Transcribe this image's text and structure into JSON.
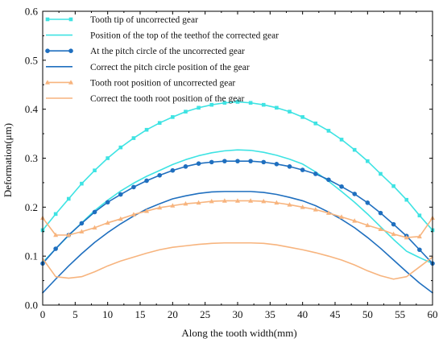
{
  "chart_data": {
    "type": "line",
    "title": "",
    "xlabel": "Along the tooth width(mm)",
    "ylabel": "Deformation(μm)",
    "xlim": [
      0,
      60
    ],
    "ylim": [
      0,
      0.6
    ],
    "x_ticks": [
      0,
      5,
      10,
      15,
      20,
      25,
      30,
      35,
      40,
      45,
      50,
      55,
      60
    ],
    "y_ticks": [
      0.0,
      0.1,
      0.2,
      0.3,
      0.4,
      0.5,
      0.6
    ],
    "x_tick_labels": [
      "0",
      "5",
      "10",
      "15",
      "20",
      "25",
      "30",
      "35",
      "40",
      "45",
      "50",
      "55",
      "60"
    ],
    "y_tick_labels": [
      "0.0",
      "0.1",
      "0.2",
      "0.3",
      "0.4",
      "0.5",
      "0.6"
    ],
    "grid": false,
    "legend_position": "top-left",
    "series": [
      {
        "name": "Tooth tip of uncorrected gear",
        "color": "#3EE3E3",
        "marker": "square",
        "x": [
          0,
          2,
          4,
          6,
          8,
          10,
          12,
          14,
          16,
          18,
          20,
          22,
          24,
          26,
          28,
          30,
          32,
          34,
          36,
          38,
          40,
          42,
          44,
          46,
          48,
          50,
          52,
          54,
          56,
          58,
          60
        ],
        "y": [
          0.153,
          0.186,
          0.217,
          0.248,
          0.275,
          0.3,
          0.322,
          0.341,
          0.358,
          0.372,
          0.384,
          0.395,
          0.403,
          0.409,
          0.413,
          0.415,
          0.413,
          0.409,
          0.403,
          0.395,
          0.384,
          0.371,
          0.356,
          0.338,
          0.317,
          0.294,
          0.268,
          0.243,
          0.215,
          0.183,
          0.153
        ]
      },
      {
        "name": "Position of the top of the teethof the corrected gear",
        "color": "#3EE3E3",
        "marker": "none",
        "x": [
          0,
          2,
          4,
          6,
          8,
          10,
          12,
          14,
          16,
          18,
          20,
          22,
          24,
          26,
          28,
          30,
          32,
          34,
          36,
          38,
          40,
          42,
          44,
          46,
          48,
          50,
          52,
          54,
          56,
          58,
          60
        ],
        "y": [
          0.087,
          0.115,
          0.142,
          0.168,
          0.193,
          0.214,
          0.233,
          0.249,
          0.263,
          0.275,
          0.287,
          0.297,
          0.305,
          0.311,
          0.315,
          0.317,
          0.316,
          0.312,
          0.306,
          0.298,
          0.288,
          0.272,
          0.253,
          0.232,
          0.21,
          0.186,
          0.16,
          0.134,
          0.11,
          0.097,
          0.085
        ]
      },
      {
        "name": "At the pitch circle of the uncorrected gear",
        "color": "#1F6FBF",
        "marker": "circle",
        "x": [
          0,
          2,
          4,
          6,
          8,
          10,
          12,
          14,
          16,
          18,
          20,
          22,
          24,
          26,
          28,
          30,
          32,
          34,
          36,
          38,
          40,
          42,
          44,
          46,
          48,
          50,
          52,
          54,
          56,
          58,
          60
        ],
        "y": [
          0.085,
          0.115,
          0.143,
          0.167,
          0.19,
          0.21,
          0.226,
          0.241,
          0.254,
          0.265,
          0.275,
          0.283,
          0.289,
          0.292,
          0.294,
          0.294,
          0.294,
          0.292,
          0.288,
          0.283,
          0.276,
          0.268,
          0.256,
          0.242,
          0.227,
          0.209,
          0.188,
          0.165,
          0.141,
          0.113,
          0.085
        ]
      },
      {
        "name": "Correct the pitch circle position of the gear",
        "color": "#1F6FBF",
        "marker": "none",
        "x": [
          0,
          2,
          4,
          6,
          8,
          10,
          12,
          14,
          16,
          18,
          20,
          22,
          24,
          26,
          28,
          30,
          32,
          34,
          36,
          38,
          40,
          42,
          44,
          46,
          48,
          50,
          52,
          54,
          56,
          58,
          60
        ],
        "y": [
          0.025,
          0.053,
          0.08,
          0.105,
          0.128,
          0.148,
          0.166,
          0.182,
          0.196,
          0.207,
          0.217,
          0.223,
          0.228,
          0.231,
          0.232,
          0.232,
          0.232,
          0.23,
          0.226,
          0.22,
          0.213,
          0.203,
          0.19,
          0.175,
          0.158,
          0.138,
          0.116,
          0.092,
          0.068,
          0.045,
          0.025
        ]
      },
      {
        "name": "Tooth root position of uncorrected gear",
        "color": "#F7B47E",
        "marker": "triangle",
        "x": [
          0,
          2,
          4,
          6,
          8,
          10,
          12,
          14,
          16,
          18,
          20,
          22,
          24,
          26,
          28,
          30,
          32,
          34,
          36,
          38,
          40,
          42,
          44,
          46,
          48,
          50,
          52,
          54,
          56,
          58,
          60
        ],
        "y": [
          0.178,
          0.143,
          0.143,
          0.15,
          0.158,
          0.168,
          0.176,
          0.185,
          0.192,
          0.199,
          0.203,
          0.207,
          0.209,
          0.212,
          0.213,
          0.213,
          0.213,
          0.212,
          0.209,
          0.205,
          0.2,
          0.195,
          0.188,
          0.18,
          0.172,
          0.163,
          0.155,
          0.145,
          0.138,
          0.14,
          0.178
        ]
      },
      {
        "name": "Correct the tooth root position of the gear",
        "color": "#F7B47E",
        "marker": "none",
        "x": [
          0,
          2,
          4,
          6,
          8,
          10,
          12,
          14,
          16,
          18,
          20,
          22,
          24,
          26,
          28,
          30,
          32,
          34,
          36,
          38,
          40,
          42,
          44,
          46,
          48,
          50,
          52,
          54,
          56,
          58,
          60
        ],
        "y": [
          0.095,
          0.058,
          0.055,
          0.058,
          0.068,
          0.08,
          0.09,
          0.098,
          0.106,
          0.113,
          0.118,
          0.121,
          0.124,
          0.126,
          0.127,
          0.127,
          0.127,
          0.126,
          0.123,
          0.118,
          0.113,
          0.107,
          0.1,
          0.092,
          0.082,
          0.07,
          0.06,
          0.053,
          0.058,
          0.078,
          0.098
        ]
      }
    ]
  }
}
